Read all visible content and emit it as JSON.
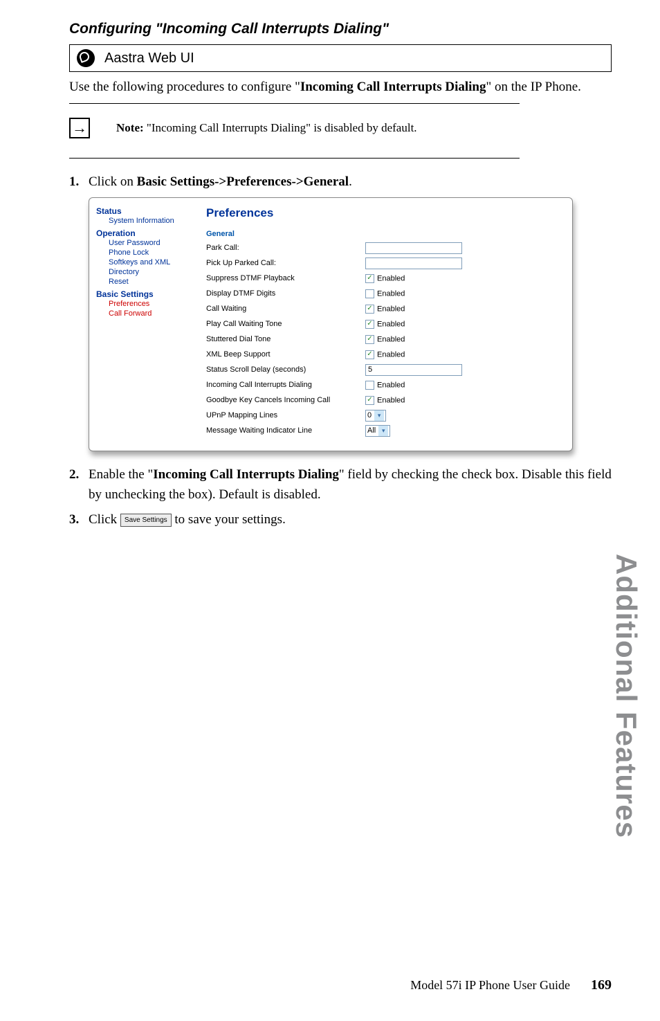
{
  "heading": "Configuring \"Incoming Call Interrupts Dialing\"",
  "web_ui_label": "Aastra Web UI",
  "intro_prefix": "Use the following procedures to configure \"",
  "intro_bold": "Incoming Call Interrupts Dialing",
  "intro_suffix": "\" on the IP Phone.",
  "note_label": "Note:",
  "note_text": " \"Incoming Call Interrupts Dialing\" is disabled by default.",
  "step1_num": "1.",
  "step1_prefix": "Click on ",
  "step1_bold": "Basic Settings->Preferences->General",
  "step1_suffix": ".",
  "step2_num": "2.",
  "step2_prefix": "Enable the \"",
  "step2_bold": "Incoming Call Interrupts Dialing",
  "step2_suffix": "\" field by checking the check box. Disable this field by unchecking the box). Default is disabled.",
  "step3_num": "3.",
  "step3_prefix": "Click ",
  "step3_btn": "Save Settings",
  "step3_suffix": " to save your settings.",
  "screenshot": {
    "nav": {
      "status": "Status",
      "system_info": "System Information",
      "operation": "Operation",
      "user_password": "User Password",
      "phone_lock": "Phone Lock",
      "softkeys": "Softkeys and XML",
      "directory": "Directory",
      "reset": "Reset",
      "basic_settings": "Basic Settings",
      "preferences": "Preferences",
      "call_forward": "Call Forward"
    },
    "title": "Preferences",
    "section": "General",
    "fields": {
      "park_call": "Park Call:",
      "pickup_parked": "Pick Up Parked Call:",
      "suppress_dtmf": "Suppress DTMF Playback",
      "display_dtmf": "Display DTMF Digits",
      "call_waiting": "Call Waiting",
      "play_cw_tone": "Play Call Waiting Tone",
      "stuttered": "Stuttered Dial Tone",
      "xml_beep": "XML Beep Support",
      "status_scroll": "Status Scroll Delay (seconds)",
      "incoming_interrupts": "Incoming Call Interrupts Dialing",
      "goodbye_cancels": "Goodbye Key Cancels Incoming Call",
      "upnp": "UPnP Mapping Lines",
      "mwi": "Message Waiting Indicator Line"
    },
    "values": {
      "status_scroll": "5",
      "upnp": "0",
      "mwi": "All"
    },
    "checks": {
      "suppress_dtmf": true,
      "display_dtmf": false,
      "call_waiting": true,
      "play_cw_tone": true,
      "stuttered": true,
      "xml_beep": true,
      "incoming_interrupts": false,
      "goodbye_cancels": true
    },
    "enabled_label": "Enabled"
  },
  "side_title": "Additional Features",
  "footer_guide": "Model 57i IP Phone User Guide",
  "footer_page": "169",
  "colors": {
    "nav_blue": "#003399",
    "nav_red": "#cc0000",
    "side_gray": "#8d8e90",
    "input_border": "#7f9db9",
    "check_green": "#2a8a2a"
  }
}
